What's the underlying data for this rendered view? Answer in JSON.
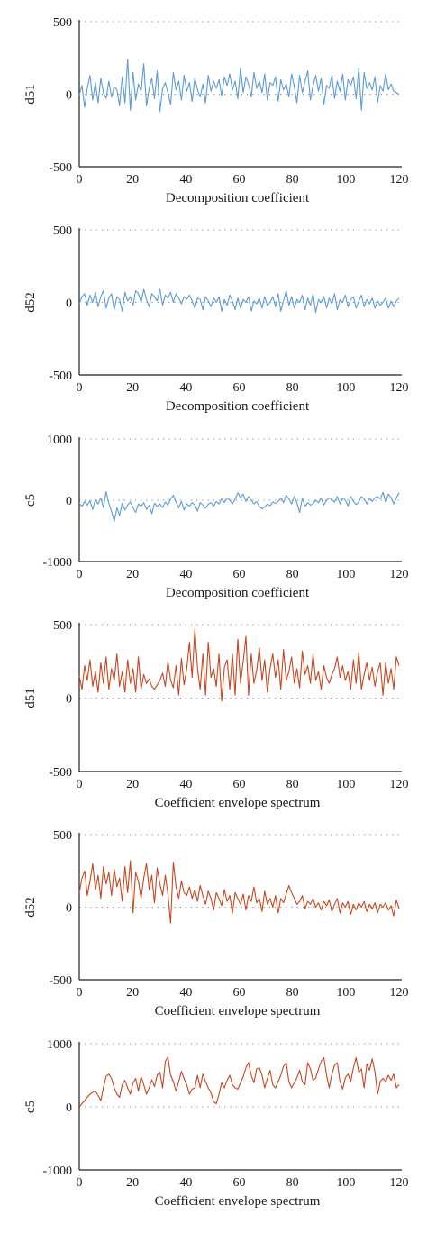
{
  "colors": {
    "blue": "#5b9bd5",
    "orange": "#c8461e",
    "axis": "#222222",
    "grid": "#888888"
  },
  "chart_data": [
    {
      "type": "line",
      "ylabel": "d51",
      "xlabel": "Decomposition coefficient",
      "xlim": [
        0,
        120
      ],
      "ylim": [
        -500,
        500
      ],
      "xticks": [
        0,
        20,
        40,
        60,
        80,
        100,
        120
      ],
      "yticks": [
        -500,
        0,
        500
      ],
      "grid": "dotted horizontal",
      "color": "blue",
      "series": [
        {
          "values": [
            -5,
            60,
            -90,
            40,
            130,
            -40,
            80,
            -60,
            110,
            10,
            -30,
            90,
            -20,
            50,
            30,
            -80,
            120,
            -60,
            240,
            -110,
            150,
            -40,
            70,
            20,
            210,
            -80,
            40,
            110,
            -30,
            160,
            -120,
            40,
            80,
            10,
            -70,
            150,
            30,
            90,
            -40,
            130,
            20,
            80,
            -50,
            110,
            30,
            -20,
            70,
            -60,
            130,
            20,
            90,
            40,
            100,
            -10,
            120,
            60,
            140,
            30,
            90,
            -30,
            180,
            10,
            120,
            70,
            -20,
            150,
            40,
            90,
            10,
            140,
            -40,
            80,
            60,
            120,
            -50,
            100,
            30,
            70,
            -20,
            140,
            50,
            -60,
            130,
            10,
            90,
            160,
            -40,
            60,
            130,
            20,
            110,
            -70,
            60,
            40,
            130,
            -30,
            90,
            20,
            140,
            -40,
            100,
            60,
            120,
            -30,
            180,
            -110,
            150,
            40,
            80,
            30,
            120,
            -60,
            60,
            20,
            140,
            30,
            70,
            20,
            10,
            0
          ]
        }
      ]
    },
    {
      "type": "line",
      "ylabel": "d52",
      "xlabel": "Decomposition coefficient",
      "xlim": [
        0,
        120
      ],
      "ylim": [
        -500,
        500
      ],
      "xticks": [
        0,
        20,
        40,
        60,
        80,
        100,
        120
      ],
      "yticks": [
        -500,
        0,
        500
      ],
      "grid": "dotted horizontal",
      "color": "blue",
      "series": [
        {
          "values": [
            -10,
            40,
            60,
            -20,
            50,
            0,
            70,
            -30,
            40,
            80,
            -40,
            30,
            60,
            -50,
            40,
            20,
            -60,
            70,
            10,
            40,
            -20,
            80,
            60,
            0,
            90,
            20,
            -30,
            60,
            40,
            10,
            90,
            -20,
            50,
            30,
            70,
            0,
            60,
            30,
            -10,
            40,
            20,
            50,
            10,
            -40,
            30,
            20,
            -50,
            40,
            10,
            -30,
            30,
            0,
            40,
            -60,
            20,
            -20,
            50,
            10,
            -50,
            30,
            -40,
            20,
            0,
            40,
            -60,
            10,
            -10,
            30,
            -40,
            40,
            -20,
            0,
            40,
            -30,
            60,
            -60,
            10,
            80,
            -20,
            40,
            -40,
            20,
            0,
            50,
            -50,
            30,
            -20,
            60,
            -70,
            20,
            0,
            40,
            -40,
            30,
            -10,
            60,
            -50,
            20,
            0,
            50,
            -30,
            20,
            40,
            -40,
            10,
            50,
            -30,
            20,
            -10,
            30,
            -40,
            10,
            -20,
            0,
            30,
            -40,
            10,
            -30,
            10,
            30
          ]
        }
      ]
    },
    {
      "type": "line",
      "ylabel": "c5",
      "xlabel": "Decomposition coefficient",
      "xlim": [
        0,
        120
      ],
      "ylim": [
        -1000,
        1000
      ],
      "xticks": [
        0,
        20,
        40,
        60,
        80,
        100,
        120
      ],
      "yticks": [
        -1000,
        0,
        1000
      ],
      "grid": "dotted horizontal",
      "color": "blue",
      "series": [
        {
          "values": [
            -50,
            -100,
            -20,
            -80,
            -10,
            -150,
            10,
            -60,
            40,
            -120,
            140,
            -50,
            -180,
            -350,
            -120,
            -250,
            -50,
            -160,
            -80,
            -30,
            -120,
            -200,
            -60,
            -100,
            -40,
            -150,
            -80,
            -220,
            -50,
            -100,
            -60,
            -120,
            -30,
            -80,
            20,
            80,
            -30,
            -120,
            -20,
            -160,
            -60,
            -100,
            -40,
            -80,
            -180,
            -40,
            -80,
            -130,
            -60,
            -40,
            -100,
            -20,
            -60,
            20,
            -40,
            40,
            0,
            -60,
            20,
            120,
            40,
            100,
            -20,
            60,
            0,
            -60,
            -20,
            -100,
            -140,
            -110,
            -60,
            -90,
            -30,
            -50,
            -20,
            40,
            -40,
            80,
            20,
            -60,
            60,
            -40,
            -200,
            40,
            -100,
            -40,
            -80,
            -60,
            0,
            -40,
            40,
            -80,
            0,
            40,
            10,
            -30,
            60,
            -60,
            40,
            0,
            -90,
            60,
            -20,
            -70,
            -30,
            60,
            20,
            -60,
            40,
            -20,
            40,
            60,
            20,
            130,
            -30,
            100,
            40,
            -60,
            40,
            120
          ]
        }
      ]
    },
    {
      "type": "line",
      "ylabel": "d51",
      "xlabel": "Coefficient envelope spectrum",
      "xlim": [
        0,
        120
      ],
      "ylim": [
        -500,
        500
      ],
      "xticks": [
        0,
        20,
        40,
        60,
        80,
        100,
        120
      ],
      "yticks": [
        -500,
        0,
        500
      ],
      "grid": "dotted horizontal",
      "color": "orange",
      "series": [
        {
          "values": [
            150,
            60,
            220,
            120,
            260,
            80,
            180,
            40,
            240,
            100,
            280,
            60,
            200,
            120,
            300,
            80,
            180,
            40,
            260,
            100,
            200,
            40,
            280,
            60,
            160,
            100,
            130,
            80,
            60,
            90,
            120,
            170,
            80,
            250,
            120,
            70,
            220,
            20,
            270,
            90,
            200,
            380,
            140,
            470,
            200,
            60,
            300,
            20,
            380,
            140,
            200,
            80,
            300,
            -20,
            210,
            260,
            60,
            300,
            20,
            400,
            100,
            250,
            420,
            20,
            300,
            100,
            190,
            340,
            120,
            260,
            40,
            200,
            300,
            140,
            260,
            60,
            330,
            120,
            180,
            280,
            100,
            200,
            70,
            320,
            160,
            220,
            100,
            300,
            120,
            180,
            60,
            220,
            140,
            100,
            160,
            200,
            280,
            140,
            220,
            120,
            180,
            60,
            260,
            100,
            310,
            60,
            160,
            240,
            120,
            210,
            80,
            180,
            240,
            20,
            240,
            100,
            200,
            60,
            280,
            220
          ]
        }
      ]
    },
    {
      "type": "line",
      "ylabel": "d52",
      "xlabel": "Coefficient envelope spectrum",
      "xlim": [
        0,
        120
      ],
      "ylim": [
        -500,
        500
      ],
      "xticks": [
        0,
        20,
        40,
        60,
        80,
        100,
        120
      ],
      "yticks": [
        -500,
        0,
        500
      ],
      "grid": "dotted horizontal",
      "color": "orange",
      "series": [
        {
          "values": [
            100,
            200,
            250,
            80,
            180,
            300,
            120,
            220,
            60,
            280,
            160,
            240,
            80,
            260,
            140,
            200,
            40,
            280,
            100,
            320,
            -40,
            240,
            180,
            60,
            200,
            300,
            120,
            220,
            30,
            270,
            160,
            80,
            220,
            90,
            -110,
            310,
            140,
            60,
            180,
            100,
            80,
            140,
            60,
            120,
            40,
            150,
            80,
            20,
            110,
            60,
            -20,
            100,
            60,
            10,
            120,
            40,
            80,
            -40,
            100,
            60,
            20,
            90,
            -20,
            80,
            40,
            140,
            30,
            60,
            -30,
            110,
            20,
            60,
            0,
            80,
            -40,
            60,
            30,
            90,
            150,
            100,
            60,
            20,
            40,
            80,
            -10,
            40,
            20,
            60,
            0,
            30,
            -20,
            40,
            10,
            50,
            -30,
            20,
            60,
            -40,
            30,
            0,
            40,
            -50,
            20,
            -20,
            30,
            0,
            40,
            -30,
            20,
            -10,
            30,
            -40,
            20,
            0,
            30,
            -20,
            10,
            -60,
            50,
            -10
          ]
        }
      ]
    },
    {
      "type": "line",
      "ylabel": "c5",
      "xlabel": "Coefficient envelope spectrum",
      "xlim": [
        0,
        120
      ],
      "ylim": [
        -1000,
        1000
      ],
      "xticks": [
        0,
        20,
        40,
        60,
        80,
        100,
        120
      ],
      "yticks": [
        -1000,
        0,
        1000
      ],
      "grid": "dotted horizontal",
      "color": "orange",
      "series": [
        {
          "values": [
            0,
            50,
            100,
            150,
            200,
            230,
            250,
            180,
            100,
            300,
            480,
            520,
            450,
            300,
            200,
            150,
            350,
            420,
            300,
            200,
            380,
            450,
            250,
            480,
            350,
            200,
            300,
            430,
            320,
            500,
            550,
            300,
            720,
            790,
            500,
            400,
            250,
            400,
            560,
            450,
            350,
            200,
            280,
            300,
            500,
            300,
            520,
            400,
            300,
            220,
            80,
            50,
            200,
            380,
            300,
            420,
            500,
            350,
            300,
            280,
            380,
            480,
            620,
            700,
            500,
            380,
            600,
            620,
            500,
            300,
            450,
            580,
            350,
            300,
            400,
            500,
            640,
            700,
            400,
            300,
            380,
            460,
            580,
            400,
            350,
            700,
            600,
            420,
            460,
            600,
            720,
            780,
            500,
            300,
            520,
            660,
            700,
            400,
            280,
            460,
            520,
            400,
            620,
            780,
            550,
            600,
            300,
            680,
            580,
            760,
            550,
            200,
            400,
            450,
            400,
            500,
            420,
            520,
            300,
            350
          ]
        }
      ]
    }
  ]
}
